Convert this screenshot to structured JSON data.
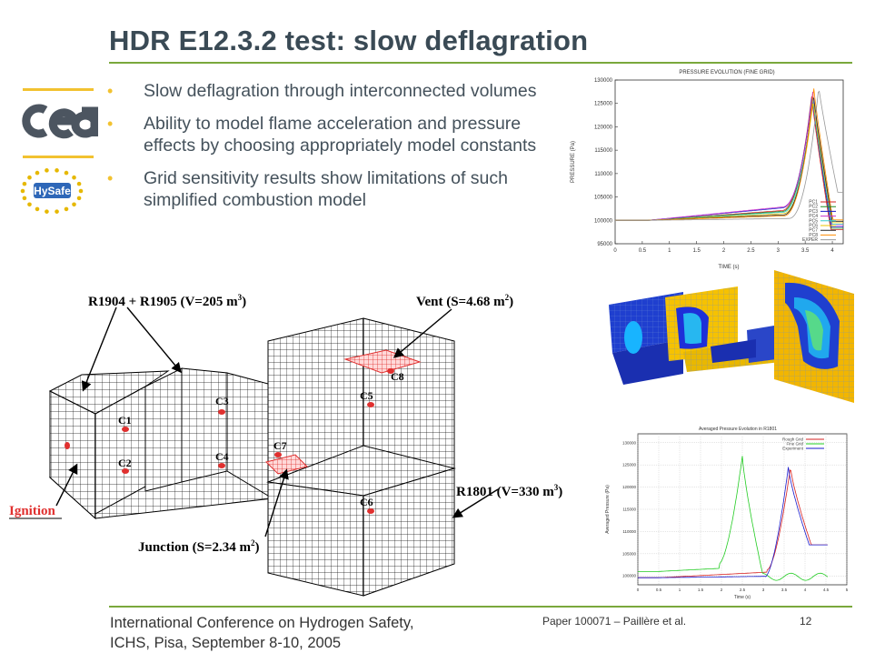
{
  "slide": {
    "title": "HDR E12.3.2 test: slow deflagration",
    "bullets": [
      "Slow deflagration through interconnected volumes",
      "Ability to model flame acceleration and pressure effects by choosing appropriately model constants",
      "Grid sensitivity results show limitations of such simplified combustion model"
    ],
    "logos": [
      "cea",
      "HySafe"
    ]
  },
  "geometry_labels": {
    "rooms": "R1904 + R1905 (V=205 m",
    "rooms_sup": "3",
    "rooms_close": ")",
    "vent": "Vent (S=4.68 m",
    "vent_sup": "2",
    "vent_close": ")",
    "r1801": "R1801 (V=330 m",
    "r1801_sup": "3",
    "r1801_close": ")",
    "junction": "Junction (S=2.34 m",
    "junction_sup": "2",
    "junction_close": ")",
    "ignition": "Ignition",
    "sensors": [
      "C1",
      "C2",
      "C3",
      "C4",
      "C5",
      "C6",
      "C7",
      "C8"
    ]
  },
  "footer": {
    "conference_line1": "International Conference on Hydrogen Safety,",
    "conference_line2": "ICHS, Pisa, September 8-10, 2005",
    "paper": "Paper 100071 – Paillère et al.",
    "page": "12"
  },
  "colors": {
    "accent_green": "#7aa83c",
    "accent_yellow": "#f2c230",
    "title": "#3a4a55"
  },
  "chart_data": [
    {
      "type": "line",
      "title": "PRESSURE EVOLUTION (FINE GRID)",
      "xlabel": "TIME (s)",
      "ylabel": "PRESSURE (Pa)",
      "xlim": [
        0,
        4.2
      ],
      "ylim": [
        95000,
        130000
      ],
      "xticks": [
        "0",
        "0.5",
        "1",
        "1.5",
        "2",
        "2.5",
        "3",
        "3.5",
        "4"
      ],
      "yticks": [
        "95000",
        "100000",
        "105000",
        "110000",
        "115000",
        "120000",
        "125000",
        "130000"
      ],
      "legend": "bottom-right",
      "grid": false,
      "series": [
        {
          "name": "PC1",
          "color": "#d62020",
          "peak": 126500,
          "peak_t": 3.62,
          "mid": 102200
        },
        {
          "name": "PC2",
          "color": "#228b22",
          "peak": 127000,
          "peak_t": 3.63,
          "mid": 102000
        },
        {
          "name": "PC3",
          "color": "#1a1acc",
          "peak": 126800,
          "peak_t": 3.63,
          "mid": 102800
        },
        {
          "name": "PC4",
          "color": "#cc33cc",
          "peak": 127500,
          "peak_t": 3.64,
          "mid": 103000
        },
        {
          "name": "PC5",
          "color": "#33cccc",
          "peak": 126000,
          "peak_t": 3.64,
          "mid": 101800
        },
        {
          "name": "PC6",
          "color": "#e8c400",
          "peak": 125800,
          "peak_t": 3.65,
          "mid": 101500
        },
        {
          "name": "PC7",
          "color": "#222222",
          "peak": 127200,
          "peak_t": 3.65,
          "mid": 101200
        },
        {
          "name": "PC8",
          "color": "#ff8c00",
          "peak": 128200,
          "peak_t": 3.66,
          "mid": 101000
        },
        {
          "name": "EXPER",
          "color": "#999999",
          "peak": 128500,
          "peak_t": 3.75,
          "mid": 100400
        }
      ]
    },
    {
      "type": "line",
      "title": "Averaged Pressure Evolution in R1801",
      "xlabel": "Time (s)",
      "ylabel": "Averaged Pressure (Pa)",
      "xlim": [
        0,
        5
      ],
      "ylim": [
        98000,
        132000
      ],
      "xticks": [
        "0",
        "0.5",
        "1",
        "1.5",
        "2",
        "2.5",
        "3",
        "3.5",
        "4",
        "4.5",
        "5"
      ],
      "yticks": [
        "100000",
        "105000",
        "110000",
        "115000",
        "120000",
        "125000",
        "130000"
      ],
      "legend": "top-right",
      "grid": true,
      "series": [
        {
          "name": "Rough Grid",
          "color": "#d62020",
          "peak": 124500,
          "peak_t": 3.65
        },
        {
          "name": "Fine Grid",
          "color": "#22cc22",
          "peak": 127000,
          "peak_t": 2.5
        },
        {
          "name": "Experiment",
          "color": "#1a1acc",
          "peak": 124500,
          "peak_t": 3.6
        }
      ]
    }
  ]
}
